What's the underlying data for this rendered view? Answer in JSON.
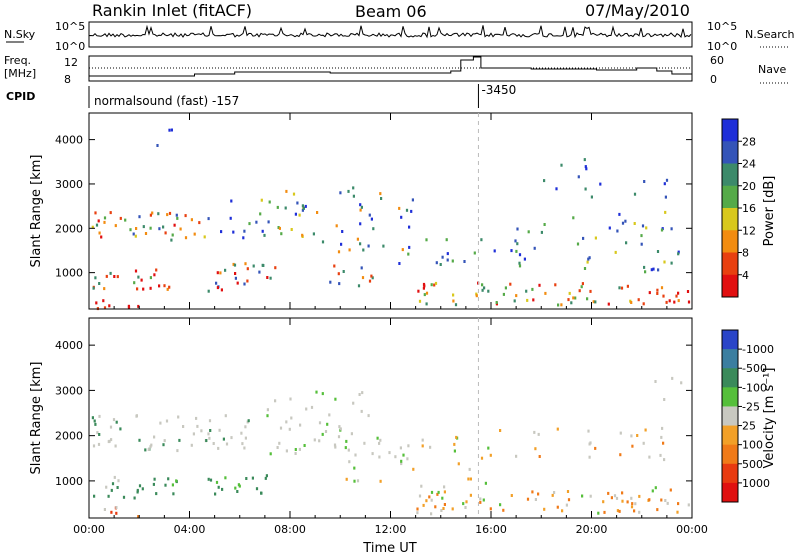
{
  "header": {
    "station": "Rankin Inlet (fitACF)",
    "beam": "Beam 06",
    "date": "07/May/2010"
  },
  "top_panels": {
    "nsky_label": "N.Sky",
    "nsky_ticks": [
      "10^5",
      "10^0"
    ],
    "nsearch_label": "N.Search",
    "nsearch_ticks": [
      "10^5",
      "10^0"
    ],
    "freq_label_1": "Freq.",
    "freq_label_2": "[MHz]",
    "freq_ticks": [
      "12",
      "8"
    ],
    "nave_label": "Nave",
    "nave_ticks": [
      "60",
      "0"
    ],
    "cpid_label": "CPID",
    "cpid_text_1": "normalsound (fast) -157",
    "cpid_text_2": "-3450",
    "cpid_change_hour": 15.5
  },
  "chart_data": [
    {
      "type": "heatmap",
      "title": "",
      "ylabel": "Slant Range [km]",
      "ylim": [
        180,
        4600
      ],
      "y_ticks": [
        "1000",
        "2000",
        "3000",
        "4000"
      ],
      "x_ticks": [
        "00:00",
        "04:00",
        "08:00",
        "12:00",
        "16:00",
        "20:00",
        "00:00"
      ],
      "xlim_hours": [
        0,
        24
      ],
      "colorbar_label": "Power [dB]",
      "colorbar_ticks": [
        "4",
        "8",
        "12",
        "16",
        "20",
        "24",
        "28"
      ],
      "colorbar_colors": [
        "#1f2fd8",
        "#3454b8",
        "#3c8a6a",
        "#55aa48",
        "#d8c81c",
        "#f28c10",
        "#e84010",
        "#e10f10"
      ]
    },
    {
      "type": "heatmap",
      "title": "",
      "ylabel": "Slant Range [km]",
      "ylim": [
        180,
        4600
      ],
      "y_ticks": [
        "1000",
        "2000",
        "3000",
        "4000"
      ],
      "x_ticks": [
        "00:00",
        "04:00",
        "08:00",
        "12:00",
        "16:00",
        "20:00",
        "00:00"
      ],
      "xlim_hours": [
        0,
        24
      ],
      "xlabel": "Time UT",
      "colorbar_label": "Velocity [m s⁻¹]",
      "colorbar_ticks": [
        "1000",
        "500",
        "100",
        "25",
        "-25",
        "-100",
        "-500",
        "-1000"
      ],
      "colorbar_colors": [
        "#2a45c8",
        "#3b7ea0",
        "#3a8a5a",
        "#55bf3a",
        "#c8c8c0",
        "#f2a028",
        "#f07a18",
        "#e83a10",
        "#e01010"
      ]
    }
  ]
}
